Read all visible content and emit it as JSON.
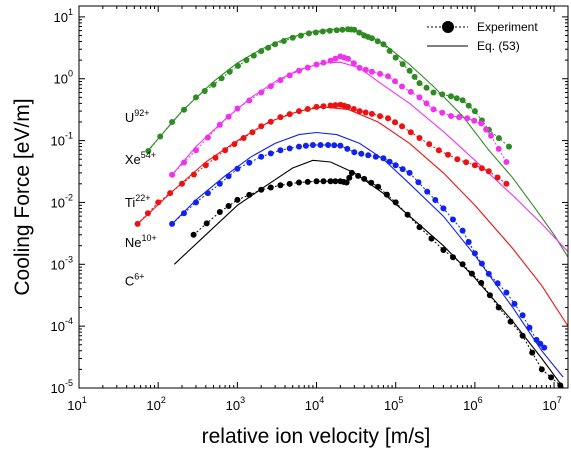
{
  "chart_data": {
    "type": "line",
    "xlabel": "relative ion velocity [m/s]",
    "ylabel": "Cooling Force [eV/m]",
    "x_scale": "log",
    "y_scale": "log",
    "xlim": [
      10,
      15000000
    ],
    "ylim": [
      1e-05,
      15
    ],
    "x_ticks": [
      {
        "value": 10,
        "base": "10",
        "exp": "1"
      },
      {
        "value": 100,
        "base": "10",
        "exp": "2"
      },
      {
        "value": 1000,
        "base": "10",
        "exp": "3"
      },
      {
        "value": 10000,
        "base": "10",
        "exp": "4"
      },
      {
        "value": 100000,
        "base": "10",
        "exp": "5"
      },
      {
        "value": 1000000,
        "base": "10",
        "exp": "6"
      },
      {
        "value": 10000000,
        "base": "10",
        "exp": "7"
      }
    ],
    "y_ticks": [
      {
        "value": 1e-05,
        "base": "10",
        "exp": "-5"
      },
      {
        "value": 0.0001,
        "base": "10",
        "exp": "-4"
      },
      {
        "value": 0.001,
        "base": "10",
        "exp": "-3"
      },
      {
        "value": 0.01,
        "base": "10",
        "exp": "-2"
      },
      {
        "value": 0.1,
        "base": "10",
        "exp": "-1"
      },
      {
        "value": 1,
        "base": "10",
        "exp": "0"
      },
      {
        "value": 10,
        "base": "10",
        "exp": "1"
      }
    ],
    "legend": {
      "position": "top-right",
      "entries": [
        {
          "label": "Experiment",
          "style": "dotted-with-marker"
        },
        {
          "label": "Eq. (53)",
          "style": "solid"
        }
      ]
    },
    "ions": [
      {
        "base": "U",
        "charge": "92+",
        "color": "#2e8b22",
        "label_at": [
          38,
          0.2
        ]
      },
      {
        "base": "Xe",
        "charge": "54+",
        "color": "#ee33ee",
        "label_at": [
          38,
          0.042
        ]
      },
      {
        "base": "Ti",
        "charge": "22+",
        "color": "#ee1111",
        "label_at": [
          38,
          0.0085
        ]
      },
      {
        "base": "Ne",
        "charge": "10+",
        "color": "#1122ee",
        "label_at": [
          38,
          0.0019
        ]
      },
      {
        "base": "C",
        "charge": "6+",
        "color": "#000000",
        "label_at": [
          38,
          0.00045
        ]
      }
    ],
    "series": [
      {
        "name": "U92+",
        "color": "#2e8b22",
        "experiment": [
          [
            75,
            0.068
          ],
          [
            150,
            0.2
          ],
          [
            300,
            0.5
          ],
          [
            500,
            0.8
          ],
          [
            800,
            1.3
          ],
          [
            1300,
            2.0
          ],
          [
            2000,
            2.8
          ],
          [
            3000,
            3.6
          ],
          [
            5000,
            4.6
          ],
          [
            8000,
            5.4
          ],
          [
            12000,
            5.8
          ],
          [
            18000,
            6.1
          ],
          [
            25000,
            6.3
          ],
          [
            30000,
            6.2
          ],
          [
            40000,
            5.0
          ],
          [
            50000,
            4.5
          ],
          [
            70000,
            3.6
          ],
          [
            100000,
            2.2
          ],
          [
            150000,
            1.35
          ],
          [
            200000,
            0.85
          ],
          [
            300000,
            0.6
          ],
          [
            500000,
            0.52
          ],
          [
            700000,
            0.45
          ],
          [
            1000000,
            0.3
          ],
          [
            1500000,
            0.15
          ],
          [
            2700000,
            0.08
          ]
        ],
        "theory": [
          [
            75,
            0.07
          ],
          [
            200,
            0.3
          ],
          [
            500,
            0.9
          ],
          [
            1000,
            1.8
          ],
          [
            2000,
            3.0
          ],
          [
            4000,
            4.4
          ],
          [
            8000,
            5.6
          ],
          [
            15000,
            6.3
          ],
          [
            25000,
            6.4
          ],
          [
            40000,
            5.5
          ],
          [
            70000,
            3.7
          ],
          [
            150000,
            1.7
          ],
          [
            300000,
            0.75
          ],
          [
            700000,
            0.25
          ],
          [
            1500000,
            0.07
          ],
          [
            3000000,
            0.025
          ],
          [
            6000000,
            0.0075
          ],
          [
            10000000,
            0.003
          ],
          [
            15000000,
            0.0013
          ]
        ]
      },
      {
        "name": "Xe54+",
        "color": "#ee33ee",
        "experiment": [
          [
            150,
            0.028
          ],
          [
            300,
            0.07
          ],
          [
            600,
            0.18
          ],
          [
            1000,
            0.33
          ],
          [
            2000,
            0.6
          ],
          [
            3500,
            0.95
          ],
          [
            6000,
            1.35
          ],
          [
            10000,
            1.7
          ],
          [
            15000,
            1.95
          ],
          [
            20000,
            2.3
          ],
          [
            25000,
            2.1
          ],
          [
            35000,
            1.5
          ],
          [
            50000,
            1.3
          ],
          [
            80000,
            1.1
          ],
          [
            120000,
            0.75
          ],
          [
            200000,
            0.5
          ],
          [
            300000,
            0.32
          ],
          [
            500000,
            0.25
          ],
          [
            800000,
            0.23
          ],
          [
            1200000,
            0.19
          ],
          [
            1600000,
            0.12
          ],
          [
            2500000,
            0.045
          ]
        ],
        "theory": [
          [
            150,
            0.028
          ],
          [
            300,
            0.08
          ],
          [
            700,
            0.22
          ],
          [
            1500,
            0.5
          ],
          [
            3000,
            0.9
          ],
          [
            6000,
            1.4
          ],
          [
            12000,
            1.8
          ],
          [
            20000,
            1.85
          ],
          [
            35000,
            1.5
          ],
          [
            60000,
            0.9
          ],
          [
            150000,
            0.4
          ],
          [
            400000,
            0.14
          ],
          [
            1000000,
            0.048
          ],
          [
            3000000,
            0.013
          ],
          [
            7000000,
            0.0045
          ],
          [
            15000000,
            0.0016
          ]
        ]
      },
      {
        "name": "Ti22+",
        "color": "#ee1111",
        "experiment": [
          [
            55,
            0.0045
          ],
          [
            100,
            0.01
          ],
          [
            200,
            0.02
          ],
          [
            400,
            0.04
          ],
          [
            700,
            0.07
          ],
          [
            1200,
            0.11
          ],
          [
            2000,
            0.17
          ],
          [
            3500,
            0.24
          ],
          [
            6000,
            0.3
          ],
          [
            10000,
            0.35
          ],
          [
            15000,
            0.37
          ],
          [
            20000,
            0.38
          ],
          [
            25000,
            0.35
          ],
          [
            35000,
            0.3
          ],
          [
            50000,
            0.27
          ],
          [
            80000,
            0.23
          ],
          [
            120000,
            0.17
          ],
          [
            200000,
            0.11
          ],
          [
            350000,
            0.07
          ],
          [
            600000,
            0.05
          ],
          [
            1000000,
            0.04
          ],
          [
            1500000,
            0.032
          ],
          [
            2500000,
            0.02
          ]
        ],
        "theory": [
          [
            55,
            0.0045
          ],
          [
            150,
            0.015
          ],
          [
            400,
            0.045
          ],
          [
            1000,
            0.1
          ],
          [
            2500,
            0.2
          ],
          [
            6000,
            0.3
          ],
          [
            12000,
            0.35
          ],
          [
            25000,
            0.32
          ],
          [
            60000,
            0.2
          ],
          [
            150000,
            0.09
          ],
          [
            400000,
            0.03
          ],
          [
            1000000,
            0.009
          ],
          [
            3000000,
            0.0018
          ],
          [
            7000000,
            0.00045
          ],
          [
            15000000,
            0.0001
          ]
        ]
      },
      {
        "name": "Ne10+",
        "color": "#1122ee",
        "experiment": [
          [
            150,
            0.0045
          ],
          [
            300,
            0.01
          ],
          [
            600,
            0.02
          ],
          [
            1000,
            0.035
          ],
          [
            2000,
            0.055
          ],
          [
            3500,
            0.07
          ],
          [
            6000,
            0.08
          ],
          [
            9000,
            0.085
          ],
          [
            14000,
            0.085
          ],
          [
            20000,
            0.083
          ],
          [
            30000,
            0.065
          ],
          [
            45000,
            0.058
          ],
          [
            70000,
            0.052
          ],
          [
            100000,
            0.04
          ],
          [
            150000,
            0.03
          ],
          [
            250000,
            0.015
          ],
          [
            400000,
            0.008
          ],
          [
            700000,
            0.0035
          ],
          [
            1000000,
            0.0015
          ],
          [
            1500000,
            0.0007
          ],
          [
            2500000,
            0.00035
          ],
          [
            4000000,
            0.00015
          ],
          [
            6000000,
            6e-05
          ],
          [
            7500000,
            4.5e-05
          ]
        ],
        "theory": [
          [
            150,
            0.0045
          ],
          [
            300,
            0.011
          ],
          [
            700,
            0.027
          ],
          [
            1500,
            0.055
          ],
          [
            3000,
            0.09
          ],
          [
            6000,
            0.125
          ],
          [
            10000,
            0.135
          ],
          [
            18000,
            0.125
          ],
          [
            35000,
            0.09
          ],
          [
            70000,
            0.05
          ],
          [
            150000,
            0.02
          ],
          [
            400000,
            0.006
          ],
          [
            1000000,
            0.0014
          ],
          [
            3000000,
            0.0002
          ],
          [
            7000000,
            4e-05
          ],
          [
            13000000,
            1.5e-05
          ]
        ]
      },
      {
        "name": "C6+",
        "color": "#000000",
        "experiment": [
          [
            280,
            0.003
          ],
          [
            600,
            0.007
          ],
          [
            1000,
            0.011
          ],
          [
            2000,
            0.016
          ],
          [
            3500,
            0.019
          ],
          [
            6000,
            0.021
          ],
          [
            10000,
            0.022
          ],
          [
            15000,
            0.022
          ],
          [
            20000,
            0.022
          ],
          [
            24000,
            0.021
          ],
          [
            28000,
            0.03
          ],
          [
            40000,
            0.024
          ],
          [
            60000,
            0.018
          ],
          [
            100000,
            0.01
          ],
          [
            200000,
            0.004
          ],
          [
            400000,
            0.0017
          ],
          [
            700000,
            0.001
          ],
          [
            1200000,
            0.0005
          ],
          [
            2000000,
            0.0002
          ],
          [
            4000000,
            7e-05
          ],
          [
            7000000,
            2e-05
          ],
          [
            12000000,
            1.1e-05
          ]
        ],
        "theory": [
          [
            160,
            0.001
          ],
          [
            400,
            0.003
          ],
          [
            1000,
            0.009
          ],
          [
            2500,
            0.02
          ],
          [
            5000,
            0.036
          ],
          [
            9000,
            0.048
          ],
          [
            15000,
            0.045
          ],
          [
            30000,
            0.03
          ],
          [
            70000,
            0.014
          ],
          [
            150000,
            0.006
          ],
          [
            400000,
            0.002
          ],
          [
            1000000,
            0.0006
          ],
          [
            3000000,
            0.00012
          ],
          [
            7000000,
            3e-05
          ],
          [
            15000000,
            8e-06
          ]
        ]
      }
    ]
  }
}
